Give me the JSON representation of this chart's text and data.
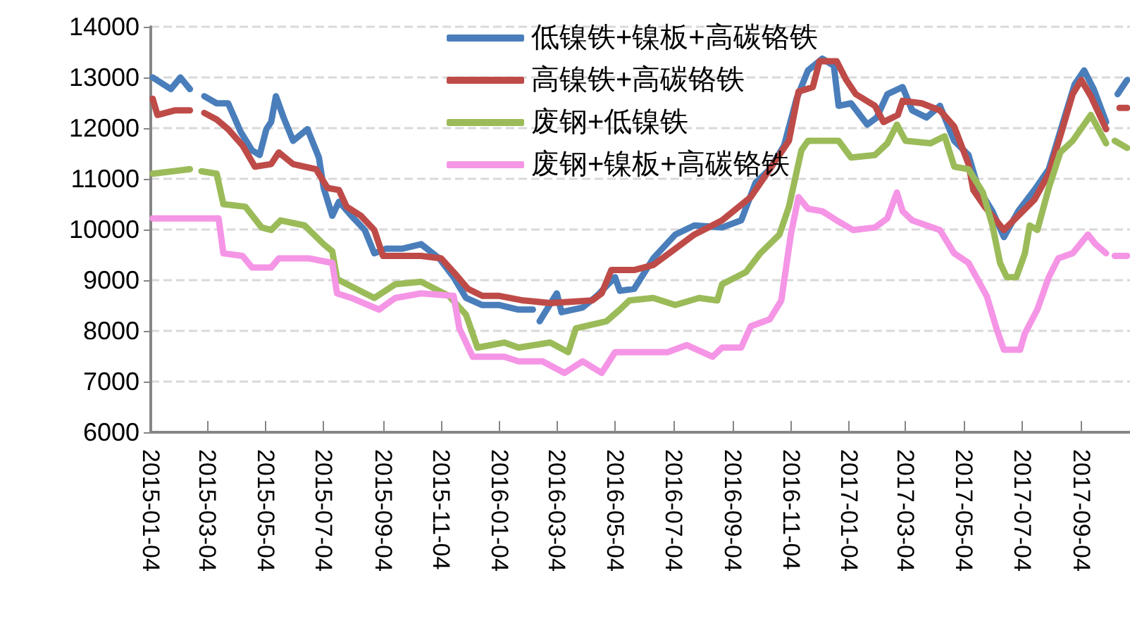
{
  "chart_data": {
    "type": "line",
    "xlim": [
      "2015-01-04",
      "2017-10-25"
    ],
    "xticks": [
      "2015-01-04",
      "2015-03-04",
      "2015-05-04",
      "2015-07-04",
      "2015-09-04",
      "2015-11-04",
      "2016-01-04",
      "2016-03-04",
      "2016-05-04",
      "2016-07-04",
      "2016-09-04",
      "2016-11-04",
      "2017-01-04",
      "2017-03-04",
      "2017-05-04",
      "2017-07-04",
      "2017-09-04"
    ],
    "ylim": [
      6000,
      14000
    ],
    "yticks": [
      6000,
      7000,
      8000,
      9000,
      10000,
      11000,
      12000,
      13000,
      14000
    ],
    "grid": "y",
    "legend": "top",
    "marker": "none",
    "line_style": "solid",
    "series": [
      {
        "name": "低镍铁+镍板+高碳铬铁",
        "color": "#4a7ebb",
        "x": [
          "2015-01-06",
          "2015-01-25",
          "2015-02-04",
          "2015-02-14",
          "2015-02-20",
          "2015-03-01",
          "2015-03-14",
          "2015-03-26",
          "2015-04-08",
          "2015-04-20",
          "2015-04-28",
          "2015-05-05",
          "2015-05-10",
          "2015-05-15",
          "2015-05-23",
          "2015-06-02",
          "2015-06-17",
          "2015-06-29",
          "2015-07-04",
          "2015-07-13",
          "2015-07-20",
          "2015-08-02",
          "2015-08-16",
          "2015-08-26",
          "2015-09-07",
          "2015-09-24",
          "2015-10-14",
          "2015-11-02",
          "2015-11-17",
          "2015-11-30",
          "2015-12-17",
          "2016-01-04",
          "2016-01-24",
          "2016-02-08",
          "2016-02-11",
          "2016-02-15",
          "2016-03-04",
          "2016-03-09",
          "2016-03-31",
          "2016-04-15",
          "2016-05-04",
          "2016-05-09",
          "2016-05-24",
          "2016-06-13",
          "2016-07-06",
          "2016-07-26",
          "2016-08-24",
          "2016-09-13",
          "2016-09-28",
          "2016-10-13",
          "2016-10-28",
          "2016-11-10",
          "2016-11-22",
          "2016-12-07",
          "2016-12-19",
          "2016-12-24",
          "2017-01-06",
          "2017-01-23",
          "2017-02-02",
          "2017-02-13",
          "2017-03-01",
          "2017-03-11",
          "2017-03-26",
          "2017-04-09",
          "2017-04-24",
          "2017-05-09",
          "2017-05-19",
          "2017-06-03",
          "2017-06-15",
          "2017-06-30",
          "2017-07-17",
          "2017-08-01",
          "2017-08-16",
          "2017-08-28",
          "2017-09-07",
          "2017-09-17",
          "2017-09-30",
          "2017-10-05",
          "2017-10-12",
          "2017-10-22"
        ],
        "values": [
          13000,
          12770,
          13000,
          12770,
          null,
          12630,
          12490,
          12490,
          11930,
          11560,
          11470,
          11980,
          12120,
          12630,
          12210,
          11750,
          11980,
          11420,
          10820,
          10270,
          10550,
          10270,
          9990,
          9530,
          9620,
          9620,
          9710,
          9430,
          9060,
          8650,
          8510,
          8510,
          8420,
          8420,
          null,
          8190,
          8740,
          8370,
          8460,
          8690,
          9060,
          8790,
          8830,
          9430,
          9900,
          10080,
          10040,
          10180,
          10920,
          11190,
          11660,
          12580,
          13140,
          13370,
          13230,
          12440,
          12490,
          12070,
          12210,
          12670,
          12810,
          12350,
          12210,
          12440,
          11750,
          11470,
          10820,
          10360,
          9850,
          10360,
          10780,
          11190,
          12120,
          12860,
          13140,
          12770,
          12120,
          null,
          12670,
          12950
        ]
      },
      {
        "name": "高镍铁+高碳铬铁",
        "color": "#be4b48",
        "x": [
          "2015-01-06",
          "2015-01-11",
          "2015-01-29",
          "2015-02-14",
          "2015-02-20",
          "2015-03-01",
          "2015-03-14",
          "2015-03-26",
          "2015-04-10",
          "2015-04-23",
          "2015-05-10",
          "2015-05-18",
          "2015-06-02",
          "2015-06-26",
          "2015-07-08",
          "2015-07-20",
          "2015-07-28",
          "2015-08-12",
          "2015-08-26",
          "2015-09-04",
          "2015-10-14",
          "2015-11-04",
          "2015-11-17",
          "2015-12-02",
          "2015-12-17",
          "2016-01-04",
          "2016-01-29",
          "2016-02-26",
          "2016-04-10",
          "2016-04-20",
          "2016-04-30",
          "2016-05-24",
          "2016-06-13",
          "2016-07-06",
          "2016-07-26",
          "2016-08-24",
          "2016-09-23",
          "2016-10-13",
          "2016-11-02",
          "2016-11-12",
          "2016-11-27",
          "2016-12-04",
          "2016-12-22",
          "2017-01-01",
          "2017-01-11",
          "2017-01-31",
          "2017-02-09",
          "2017-02-24",
          "2017-03-01",
          "2017-03-21",
          "2017-04-09",
          "2017-04-24",
          "2017-05-09",
          "2017-05-14",
          "2017-05-26",
          "2017-06-15",
          "2017-06-30",
          "2017-07-17",
          "2017-08-01",
          "2017-08-13",
          "2017-08-26",
          "2017-09-04",
          "2017-09-14",
          "2017-09-30",
          "2017-10-05",
          "2017-10-14",
          "2017-10-22"
        ],
        "values": [
          12580,
          12260,
          12350,
          12350,
          null,
          12300,
          12170,
          11980,
          11660,
          11240,
          11290,
          11520,
          11290,
          11190,
          10820,
          10780,
          10450,
          10270,
          9990,
          9480,
          9480,
          9430,
          9160,
          8830,
          8690,
          8690,
          8600,
          8550,
          8600,
          8740,
          9200,
          9200,
          9300,
          9620,
          9900,
          10180,
          10640,
          11190,
          11750,
          12720,
          12810,
          13320,
          13320,
          12950,
          12670,
          12440,
          12120,
          12260,
          12540,
          12490,
          12350,
          12030,
          11290,
          10780,
          10450,
          9990,
          10270,
          10590,
          11100,
          11840,
          12670,
          12950,
          12630,
          11980,
          null,
          12400,
          12400
        ]
      },
      {
        "name": "废钢+低镍铁",
        "color": "#9bbb59",
        "x": [
          "2015-01-06",
          "2015-02-14",
          "2015-02-20",
          "2015-02-26",
          "2015-03-14",
          "2015-03-21",
          "2015-04-13",
          "2015-04-30",
          "2015-05-10",
          "2015-05-20",
          "2015-06-14",
          "2015-07-04",
          "2015-07-13",
          "2015-07-18",
          "2015-08-07",
          "2015-08-26",
          "2015-09-17",
          "2015-10-14",
          "2015-11-12",
          "2015-11-30",
          "2015-12-12",
          "2016-01-09",
          "2016-01-24",
          "2016-02-26",
          "2016-03-16",
          "2016-03-24",
          "2016-04-25",
          "2016-05-09",
          "2016-05-19",
          "2016-06-13",
          "2016-07-06",
          "2016-07-31",
          "2016-08-19",
          "2016-08-24",
          "2016-09-18",
          "2016-10-03",
          "2016-10-23",
          "2016-11-02",
          "2016-11-15",
          "2016-11-22",
          "2016-12-12",
          "2016-12-24",
          "2017-01-06",
          "2017-01-31",
          "2017-02-13",
          "2017-02-23",
          "2017-03-04",
          "2017-03-30",
          "2017-04-14",
          "2017-04-24",
          "2017-05-09",
          "2017-05-24",
          "2017-06-03",
          "2017-06-11",
          "2017-06-18",
          "2017-06-28",
          "2017-07-07",
          "2017-07-12",
          "2017-07-20",
          "2017-08-01",
          "2017-08-13",
          "2017-08-26",
          "2017-09-14",
          "2017-09-30",
          "2017-10-05",
          "2017-10-09",
          "2017-10-22"
        ],
        "values": [
          11100,
          11190,
          null,
          11150,
          11100,
          10500,
          10450,
          10040,
          9990,
          10180,
          10080,
          9710,
          9570,
          9020,
          8830,
          8650,
          8920,
          8970,
          8690,
          8320,
          7670,
          7770,
          7670,
          7770,
          7580,
          8050,
          8190,
          8420,
          8600,
          8650,
          8510,
          8650,
          8600,
          8920,
          9160,
          9530,
          9900,
          10450,
          11560,
          11750,
          11750,
          11750,
          11420,
          11470,
          11700,
          12070,
          11750,
          11700,
          11840,
          11240,
          11190,
          10730,
          10080,
          9340,
          9060,
          9060,
          9530,
          10080,
          9990,
          10820,
          11520,
          11750,
          12260,
          11700,
          null,
          11750,
          11610
        ]
      },
      {
        "name": "废钢+镍板+高碳铬铁",
        "color": "#f595e6",
        "x": [
          "2015-01-06",
          "2015-03-16",
          "2015-03-21",
          "2015-04-10",
          "2015-04-20",
          "2015-05-10",
          "2015-05-18",
          "2015-06-19",
          "2015-07-13",
          "2015-07-18",
          "2015-08-02",
          "2015-08-31",
          "2015-09-17",
          "2015-10-14",
          "2015-11-17",
          "2015-11-23",
          "2015-12-07",
          "2016-01-09",
          "2016-01-24",
          "2016-02-18",
          "2016-03-12",
          "2016-03-31",
          "2016-04-20",
          "2016-05-04",
          "2016-06-03",
          "2016-06-28",
          "2016-07-18",
          "2016-08-14",
          "2016-08-24",
          "2016-09-13",
          "2016-09-23",
          "2016-10-13",
          "2016-10-25",
          "2016-11-04",
          "2016-11-12",
          "2016-11-22",
          "2016-12-07",
          "2016-12-22",
          "2017-01-08",
          "2017-01-31",
          "2017-02-13",
          "2017-02-23",
          "2017-03-01",
          "2017-03-11",
          "2017-04-09",
          "2017-04-24",
          "2017-05-09",
          "2017-05-28",
          "2017-06-08",
          "2017-06-15",
          "2017-07-02",
          "2017-07-07",
          "2017-07-20",
          "2017-08-01",
          "2017-08-11",
          "2017-08-26",
          "2017-09-11",
          "2017-09-19",
          "2017-09-30",
          "2017-10-05",
          "2017-10-09",
          "2017-10-22"
        ],
        "values": [
          10220,
          10220,
          9530,
          9480,
          9250,
          9250,
          9430,
          9430,
          9340,
          8740,
          8650,
          8420,
          8650,
          8740,
          8690,
          8050,
          7490,
          7490,
          7400,
          7400,
          7170,
          7400,
          7170,
          7580,
          7580,
          7580,
          7720,
          7490,
          7670,
          7670,
          8090,
          8230,
          8600,
          9900,
          10640,
          10410,
          10360,
          10180,
          9990,
          10040,
          10220,
          10730,
          10360,
          10180,
          9990,
          9530,
          9340,
          8690,
          8000,
          7630,
          7630,
          7950,
          8420,
          9060,
          9430,
          9530,
          9900,
          9710,
          9530,
          null,
          9480,
          9480
        ]
      }
    ]
  }
}
